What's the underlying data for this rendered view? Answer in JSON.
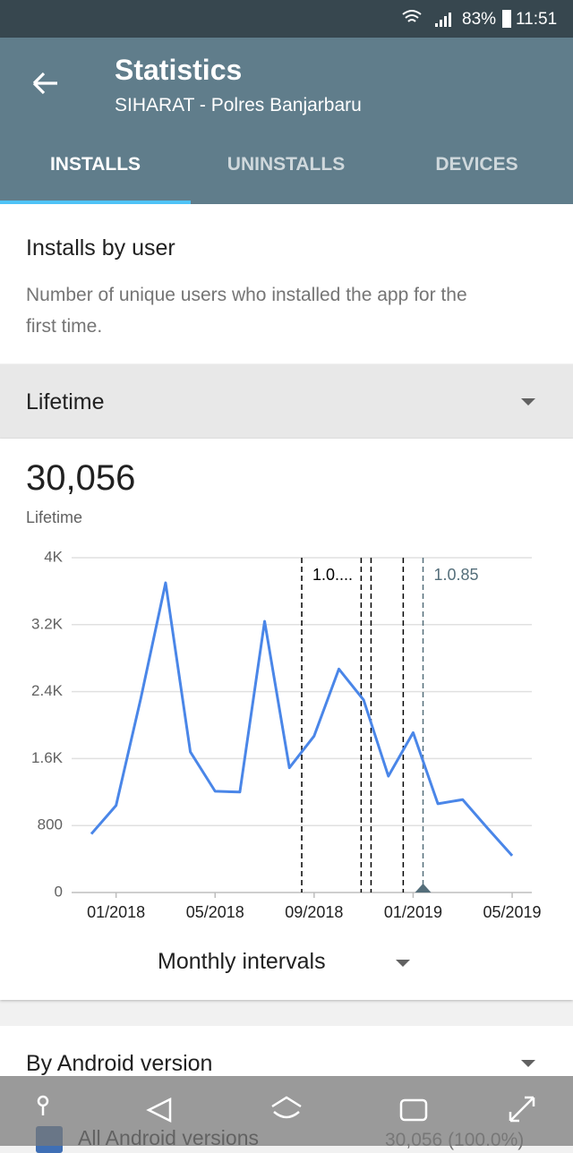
{
  "status_bar": {
    "battery": "83%",
    "time": "11:51"
  },
  "app_bar": {
    "title": "Statistics",
    "subtitle": "SIHARAT - Polres Banjarbaru",
    "tabs": [
      "INSTALLS",
      "UNINSTALLS",
      "DEVICES"
    ]
  },
  "info_card": {
    "title": "Installs by user",
    "description": "Number of unique users who installed the app for the first time."
  },
  "period_selector": {
    "label": "Lifetime"
  },
  "summary": {
    "total": "30,056",
    "caption": "Lifetime"
  },
  "chart_data": {
    "type": "line",
    "categories": [
      null,
      "01/2018",
      null,
      null,
      null,
      "05/2018",
      null,
      null,
      null,
      "09/2018",
      null,
      null,
      null,
      "01/2019",
      null,
      null,
      null,
      "05/2019"
    ],
    "series": [
      {
        "name": "Installs",
        "color": "#4a86e8",
        "values": [
          700,
          1040,
          2320,
          3700,
          1680,
          1210,
          1200,
          3240,
          1490,
          1870,
          2670,
          2300,
          1390,
          1910,
          1060,
          1110,
          770,
          440
        ]
      }
    ],
    "ylim": [
      0,
      4000
    ],
    "yticks": [
      0,
      800,
      {
        "value": 1600,
        "label": "1.6K"
      },
      {
        "value": 2400,
        "label": "2.4K"
      },
      {
        "value": 3200,
        "label": "3.2K"
      },
      {
        "value": 4000,
        "label": "4K"
      }
    ],
    "grid": true,
    "annotations": [
      {
        "x": 8.5,
        "label": "1.0...."
      },
      {
        "x": 10.9
      },
      {
        "x": 11.3
      },
      {
        "x": 12.6
      },
      {
        "x": 13.4,
        "label": "1.0.85",
        "color": "#546e7a"
      }
    ]
  },
  "interval_selector": {
    "label": "Monthly intervals"
  },
  "android_card": {
    "title": "By Android version",
    "row_label": "All Android versions",
    "row_value": "30,056 (100.0%)"
  }
}
